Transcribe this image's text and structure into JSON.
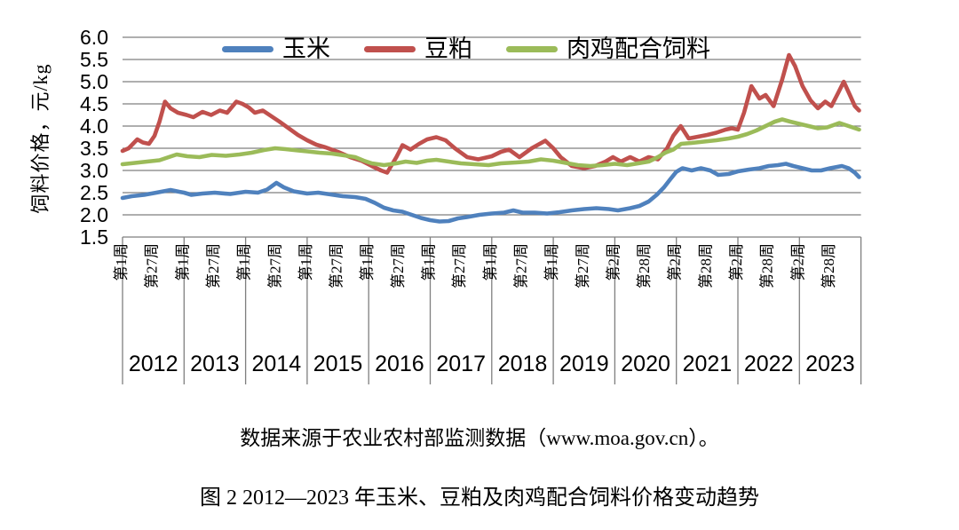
{
  "figure": {
    "source_note": "数据来源于农业农村部监测数据（www.moa.gov.cn）。",
    "caption": "图 2 2012—2023 年玉米、豆粕及肉鸡配合饲料价格变动趋势"
  },
  "chart_data": {
    "type": "line",
    "title": "",
    "ylabel": "饲料价格，元/kg",
    "ylim": [
      1.5,
      6.0
    ],
    "yticks": [
      6.0,
      5.5,
      5.0,
      4.5,
      4.0,
      3.5,
      3.0,
      2.5,
      2.0,
      1.5
    ],
    "grid": true,
    "legend_position": "top-center-inside",
    "x_unit": "years since 2012 (weekly data, fractional year)",
    "xlim": [
      0,
      12
    ],
    "colors": {
      "grid": "#7F7F7F",
      "axis": "#7F7F7F"
    },
    "week_ticks": [
      {
        "pos": 0.0,
        "label": "第1周"
      },
      {
        "pos": 0.5,
        "label": "第27周"
      },
      {
        "pos": 1.0,
        "label": "第1周"
      },
      {
        "pos": 1.5,
        "label": "第27周"
      },
      {
        "pos": 2.0,
        "label": "第1周"
      },
      {
        "pos": 2.5,
        "label": "第27周"
      },
      {
        "pos": 3.0,
        "label": "第1周"
      },
      {
        "pos": 3.5,
        "label": "第27周"
      },
      {
        "pos": 4.0,
        "label": "第1周"
      },
      {
        "pos": 4.5,
        "label": "第27周"
      },
      {
        "pos": 5.0,
        "label": "第1周"
      },
      {
        "pos": 5.5,
        "label": "第27周"
      },
      {
        "pos": 6.0,
        "label": "第1周"
      },
      {
        "pos": 6.5,
        "label": "第27周"
      },
      {
        "pos": 7.0,
        "label": "第1周"
      },
      {
        "pos": 7.5,
        "label": "第27周"
      },
      {
        "pos": 8.0,
        "label": "第2周"
      },
      {
        "pos": 8.5,
        "label": "第28周"
      },
      {
        "pos": 9.0,
        "label": "第2周"
      },
      {
        "pos": 9.5,
        "label": "第28周"
      },
      {
        "pos": 10.0,
        "label": "第2周"
      },
      {
        "pos": 10.5,
        "label": "第28周"
      },
      {
        "pos": 11.0,
        "label": "第2周"
      },
      {
        "pos": 11.5,
        "label": "第28周"
      }
    ],
    "year_labels": [
      "2012",
      "2013",
      "2014",
      "2015",
      "2016",
      "2017",
      "2018",
      "2019",
      "2020",
      "2021",
      "2022",
      "2023"
    ],
    "series": [
      {
        "name": "玉米",
        "color": "#4F81BD",
        "points": [
          [
            0,
            2.38
          ],
          [
            0.15,
            2.42
          ],
          [
            0.35,
            2.45
          ],
          [
            0.55,
            2.5
          ],
          [
            0.78,
            2.56
          ],
          [
            0.92,
            2.52
          ],
          [
            1.0,
            2.5
          ],
          [
            1.12,
            2.45
          ],
          [
            1.3,
            2.48
          ],
          [
            1.5,
            2.5
          ],
          [
            1.75,
            2.47
          ],
          [
            2.0,
            2.52
          ],
          [
            2.2,
            2.5
          ],
          [
            2.35,
            2.57
          ],
          [
            2.5,
            2.72
          ],
          [
            2.62,
            2.62
          ],
          [
            2.78,
            2.53
          ],
          [
            3.0,
            2.48
          ],
          [
            3.18,
            2.5
          ],
          [
            3.38,
            2.46
          ],
          [
            3.58,
            2.42
          ],
          [
            3.78,
            2.4
          ],
          [
            3.95,
            2.36
          ],
          [
            4.1,
            2.27
          ],
          [
            4.25,
            2.16
          ],
          [
            4.4,
            2.1
          ],
          [
            4.55,
            2.07
          ],
          [
            4.7,
            2.0
          ],
          [
            4.85,
            1.93
          ],
          [
            5.0,
            1.88
          ],
          [
            5.15,
            1.85
          ],
          [
            5.3,
            1.86
          ],
          [
            5.45,
            1.92
          ],
          [
            5.6,
            1.95
          ],
          [
            5.8,
            2.0
          ],
          [
            6.0,
            2.03
          ],
          [
            6.2,
            2.05
          ],
          [
            6.35,
            2.1
          ],
          [
            6.5,
            2.05
          ],
          [
            6.7,
            2.05
          ],
          [
            6.9,
            2.03
          ],
          [
            7.1,
            2.06
          ],
          [
            7.3,
            2.1
          ],
          [
            7.5,
            2.13
          ],
          [
            7.7,
            2.15
          ],
          [
            7.9,
            2.13
          ],
          [
            8.05,
            2.1
          ],
          [
            8.25,
            2.15
          ],
          [
            8.4,
            2.2
          ],
          [
            8.55,
            2.3
          ],
          [
            8.68,
            2.45
          ],
          [
            8.8,
            2.62
          ],
          [
            8.9,
            2.8
          ],
          [
            9.0,
            2.97
          ],
          [
            9.1,
            3.05
          ],
          [
            9.25,
            3.0
          ],
          [
            9.4,
            3.05
          ],
          [
            9.55,
            3.0
          ],
          [
            9.68,
            2.9
          ],
          [
            9.85,
            2.92
          ],
          [
            10.0,
            2.98
          ],
          [
            10.18,
            3.02
          ],
          [
            10.35,
            3.05
          ],
          [
            10.5,
            3.1
          ],
          [
            10.65,
            3.12
          ],
          [
            10.78,
            3.15
          ],
          [
            10.9,
            3.1
          ],
          [
            11.05,
            3.05
          ],
          [
            11.2,
            3.0
          ],
          [
            11.35,
            3.0
          ],
          [
            11.5,
            3.05
          ],
          [
            11.69,
            3.1
          ],
          [
            11.8,
            3.05
          ],
          [
            11.9,
            2.95
          ],
          [
            11.97,
            2.85
          ]
        ]
      },
      {
        "name": "豆粕",
        "color": "#C0504D",
        "points": [
          [
            0,
            3.44
          ],
          [
            0.1,
            3.5
          ],
          [
            0.24,
            3.7
          ],
          [
            0.33,
            3.63
          ],
          [
            0.43,
            3.6
          ],
          [
            0.52,
            3.78
          ],
          [
            0.6,
            4.1
          ],
          [
            0.69,
            4.55
          ],
          [
            0.78,
            4.4
          ],
          [
            0.9,
            4.3
          ],
          [
            1.04,
            4.25
          ],
          [
            1.15,
            4.2
          ],
          [
            1.3,
            4.32
          ],
          [
            1.44,
            4.25
          ],
          [
            1.58,
            4.35
          ],
          [
            1.7,
            4.3
          ],
          [
            1.85,
            4.55
          ],
          [
            1.95,
            4.5
          ],
          [
            2.05,
            4.42
          ],
          [
            2.15,
            4.3
          ],
          [
            2.28,
            4.35
          ],
          [
            2.42,
            4.22
          ],
          [
            2.55,
            4.1
          ],
          [
            2.7,
            3.95
          ],
          [
            2.85,
            3.8
          ],
          [
            3.0,
            3.68
          ],
          [
            3.15,
            3.58
          ],
          [
            3.3,
            3.52
          ],
          [
            3.5,
            3.42
          ],
          [
            3.7,
            3.3
          ],
          [
            3.88,
            3.22
          ],
          [
            4.05,
            3.1
          ],
          [
            4.2,
            3.0
          ],
          [
            4.3,
            2.95
          ],
          [
            4.45,
            3.3
          ],
          [
            4.55,
            3.57
          ],
          [
            4.68,
            3.47
          ],
          [
            4.82,
            3.6
          ],
          [
            4.95,
            3.7
          ],
          [
            5.1,
            3.75
          ],
          [
            5.25,
            3.68
          ],
          [
            5.4,
            3.5
          ],
          [
            5.6,
            3.3
          ],
          [
            5.78,
            3.25
          ],
          [
            6.0,
            3.32
          ],
          [
            6.15,
            3.42
          ],
          [
            6.28,
            3.47
          ],
          [
            6.45,
            3.3
          ],
          [
            6.65,
            3.5
          ],
          [
            6.87,
            3.67
          ],
          [
            7.0,
            3.5
          ],
          [
            7.12,
            3.3
          ],
          [
            7.3,
            3.1
          ],
          [
            7.5,
            3.05
          ],
          [
            7.68,
            3.1
          ],
          [
            7.85,
            3.2
          ],
          [
            7.97,
            3.3
          ],
          [
            8.1,
            3.2
          ],
          [
            8.25,
            3.3
          ],
          [
            8.4,
            3.2
          ],
          [
            8.55,
            3.3
          ],
          [
            8.7,
            3.25
          ],
          [
            8.85,
            3.5
          ],
          [
            8.95,
            3.78
          ],
          [
            9.07,
            4.0
          ],
          [
            9.2,
            3.72
          ],
          [
            9.35,
            3.76
          ],
          [
            9.5,
            3.8
          ],
          [
            9.65,
            3.85
          ],
          [
            9.8,
            3.92
          ],
          [
            9.9,
            3.95
          ],
          [
            10.0,
            3.92
          ],
          [
            10.1,
            4.3
          ],
          [
            10.22,
            4.9
          ],
          [
            10.35,
            4.62
          ],
          [
            10.45,
            4.7
          ],
          [
            10.58,
            4.45
          ],
          [
            10.72,
            5.05
          ],
          [
            10.83,
            5.6
          ],
          [
            10.93,
            5.35
          ],
          [
            11.05,
            4.9
          ],
          [
            11.18,
            4.58
          ],
          [
            11.3,
            4.4
          ],
          [
            11.42,
            4.55
          ],
          [
            11.52,
            4.45
          ],
          [
            11.63,
            4.75
          ],
          [
            11.72,
            5.0
          ],
          [
            11.82,
            4.7
          ],
          [
            11.9,
            4.45
          ],
          [
            11.97,
            4.35
          ]
        ]
      },
      {
        "name": "肉鸡配合饲料",
        "color": "#9BBB59",
        "points": [
          [
            0,
            3.14
          ],
          [
            0.2,
            3.17
          ],
          [
            0.4,
            3.2
          ],
          [
            0.6,
            3.23
          ],
          [
            0.75,
            3.3
          ],
          [
            0.88,
            3.36
          ],
          [
            1.05,
            3.32
          ],
          [
            1.25,
            3.3
          ],
          [
            1.45,
            3.35
          ],
          [
            1.68,
            3.33
          ],
          [
            1.9,
            3.36
          ],
          [
            2.1,
            3.4
          ],
          [
            2.3,
            3.46
          ],
          [
            2.48,
            3.5
          ],
          [
            2.65,
            3.48
          ],
          [
            2.85,
            3.45
          ],
          [
            3.0,
            3.43
          ],
          [
            3.2,
            3.4
          ],
          [
            3.4,
            3.38
          ],
          [
            3.6,
            3.34
          ],
          [
            3.78,
            3.3
          ],
          [
            3.92,
            3.22
          ],
          [
            4.05,
            3.16
          ],
          [
            4.25,
            3.12
          ],
          [
            4.45,
            3.16
          ],
          [
            4.6,
            3.2
          ],
          [
            4.78,
            3.17
          ],
          [
            4.95,
            3.22
          ],
          [
            5.1,
            3.24
          ],
          [
            5.3,
            3.2
          ],
          [
            5.5,
            3.16
          ],
          [
            5.72,
            3.14
          ],
          [
            5.95,
            3.12
          ],
          [
            6.15,
            3.16
          ],
          [
            6.4,
            3.18
          ],
          [
            6.6,
            3.2
          ],
          [
            6.8,
            3.25
          ],
          [
            7.0,
            3.22
          ],
          [
            7.2,
            3.17
          ],
          [
            7.4,
            3.12
          ],
          [
            7.6,
            3.1
          ],
          [
            7.8,
            3.12
          ],
          [
            8.0,
            3.15
          ],
          [
            8.2,
            3.12
          ],
          [
            8.38,
            3.16
          ],
          [
            8.55,
            3.2
          ],
          [
            8.7,
            3.3
          ],
          [
            8.82,
            3.4
          ],
          [
            8.95,
            3.47
          ],
          [
            9.08,
            3.6
          ],
          [
            9.25,
            3.62
          ],
          [
            9.45,
            3.65
          ],
          [
            9.65,
            3.68
          ],
          [
            9.85,
            3.72
          ],
          [
            10.0,
            3.76
          ],
          [
            10.15,
            3.82
          ],
          [
            10.3,
            3.9
          ],
          [
            10.45,
            4.0
          ],
          [
            10.6,
            4.1
          ],
          [
            10.72,
            4.15
          ],
          [
            10.85,
            4.1
          ],
          [
            11.0,
            4.05
          ],
          [
            11.15,
            4.0
          ],
          [
            11.3,
            3.95
          ],
          [
            11.45,
            3.97
          ],
          [
            11.65,
            4.07
          ],
          [
            11.8,
            4.0
          ],
          [
            11.97,
            3.92
          ]
        ]
      }
    ]
  }
}
